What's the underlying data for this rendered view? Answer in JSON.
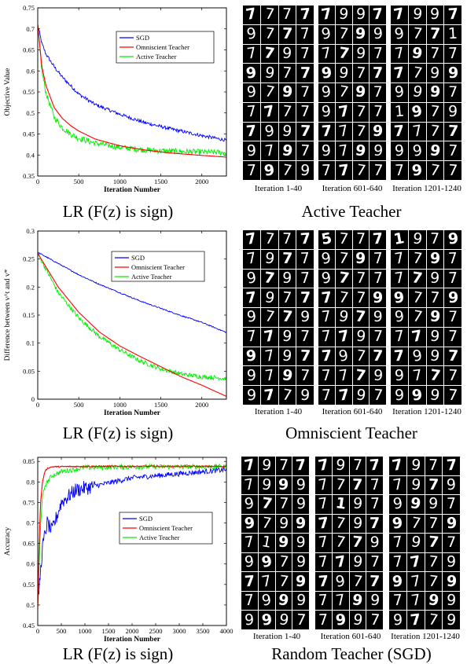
{
  "charts": [
    {
      "caption": "LR (F(z) is sign)",
      "panel_title": "Active Teacher",
      "grid_captions": [
        "Iteration 1-40",
        "Iteration 601-640",
        "Iteration 1201-1240"
      ]
    },
    {
      "caption": "LR (F(z) is sign)",
      "panel_title": "Omniscient Teacher",
      "grid_captions": [
        "Iteration 1-40",
        "Iteration 601-640",
        "Iteration 1201-1240"
      ]
    },
    {
      "caption": "LR (F(z) is sign)",
      "panel_title": "Random Teacher (SGD)",
      "grid_captions": [
        "Iteration 1-40",
        "Iteration 601-640",
        "Iteration 1201-1240"
      ]
    }
  ],
  "digit_grids": [
    [
      [
        "7",
        "7",
        "7",
        "7",
        "9",
        "7",
        "7",
        "7",
        "7",
        "7",
        "9",
        "7",
        "9",
        "9",
        "7",
        "7",
        "9",
        "7",
        "9",
        "7",
        "7",
        "7",
        "7",
        "7",
        "7",
        "9",
        "9",
        "7",
        "9",
        "7",
        "9",
        "7",
        "7",
        "9",
        "7",
        "9"
      ],
      [
        "7",
        "9",
        "9",
        "7",
        "9",
        "7",
        "9",
        "9",
        "7",
        "7",
        "9",
        "7",
        "9",
        "9",
        "7",
        "7",
        "9",
        "7",
        "9",
        "7",
        "9",
        "7",
        "7",
        "7",
        "7",
        "7",
        "7",
        "9",
        "9",
        "7",
        "9",
        "9",
        "7",
        "7",
        "7",
        "7"
      ],
      [
        "7",
        "9",
        "9",
        "7",
        "9",
        "7",
        "7",
        "1",
        "7",
        "9",
        "7",
        "7",
        "7",
        "7",
        "9",
        "9",
        "9",
        "9",
        "9",
        "7",
        "1",
        "9",
        "7",
        "9",
        "7",
        "7",
        "7",
        "7",
        "9",
        "9",
        "9",
        "7",
        "7",
        "9",
        "7",
        "7"
      ]
    ],
    [
      [
        "7",
        "7",
        "7",
        "7",
        "7",
        "9",
        "7",
        "7",
        "9",
        "7",
        "9",
        "7",
        "7",
        "9",
        "7",
        "7",
        "9",
        "7",
        "7",
        "9",
        "7",
        "7",
        "9",
        "7",
        "9",
        "7",
        "9",
        "7",
        "9",
        "7",
        "9",
        "7",
        "9",
        "7",
        "7",
        "9"
      ],
      [
        "5",
        "7",
        "7",
        "7",
        "9",
        "7",
        "9",
        "7",
        "9",
        "7",
        "7",
        "7",
        "7",
        "7",
        "7",
        "9",
        "7",
        "9",
        "7",
        "9",
        "7",
        "7",
        "9",
        "7",
        "7",
        "9",
        "7",
        "7",
        "7",
        "7",
        "7",
        "9",
        "7",
        "7",
        "9",
        "7"
      ],
      [
        "1",
        "9",
        "7",
        "9",
        "7",
        "7",
        "9",
        "7",
        "7",
        "7",
        "9",
        "7",
        "9",
        "7",
        "7",
        "9",
        "9",
        "7",
        "9",
        "7",
        "7",
        "7",
        "9",
        "7",
        "7",
        "9",
        "9",
        "7",
        "9",
        "7",
        "7",
        "7",
        "9",
        "9",
        "9",
        "7"
      ]
    ],
    [
      [
        "7",
        "9",
        "7",
        "7",
        "7",
        "9",
        "9",
        "9",
        "9",
        "7",
        "7",
        "9",
        "9",
        "7",
        "9",
        "9",
        "7",
        "1",
        "9",
        "9",
        "9",
        "9",
        "7",
        "9",
        "7",
        "7",
        "7",
        "9",
        "7",
        "9",
        "9",
        "9",
        "9",
        "9",
        "9",
        "7"
      ],
      [
        "7",
        "9",
        "7",
        "7",
        "7",
        "7",
        "7",
        "7",
        "7",
        "1",
        "9",
        "7",
        "7",
        "7",
        "9",
        "7",
        "7",
        "7",
        "7",
        "9",
        "7",
        "7",
        "9",
        "7",
        "7",
        "9",
        "7",
        "7",
        "7",
        "7",
        "9",
        "9",
        "7",
        "9",
        "9",
        "7"
      ],
      [
        "7",
        "9",
        "7",
        "7",
        "7",
        "9",
        "7",
        "9",
        "9",
        "9",
        "9",
        "7",
        "9",
        "7",
        "7",
        "9",
        "7",
        "9",
        "7",
        "7",
        "7",
        "7",
        "7",
        "9",
        "9",
        "7",
        "7",
        "9",
        "7",
        "7",
        "9",
        "9",
        "9",
        "7",
        "7",
        "9"
      ]
    ]
  ],
  "chart_data": [
    {
      "type": "line",
      "xlabel": "Iteration Number",
      "ylabel": "Objective Value",
      "xlim": [
        0,
        2300
      ],
      "ylim": [
        0.35,
        0.75
      ],
      "xticks": [
        0,
        500,
        1000,
        1500,
        2000
      ],
      "yticks": [
        0.35,
        0.4,
        0.45,
        0.5,
        0.55,
        0.6,
        0.65,
        0.7,
        0.75
      ],
      "ytick_labels": [
        "0.35",
        "0.4",
        "0.45",
        "0.5",
        "0.55",
        "0.6",
        "0.65",
        "0.7",
        "0.75"
      ],
      "legend_position": "top-right",
      "colors": {
        "SGD": "#0000ff",
        "Omniscient Teacher": "#ff0000",
        "Active Teacher": "#00ee00"
      },
      "series": [
        {
          "name": "SGD",
          "x": [
            0,
            50,
            100,
            200,
            300,
            400,
            500,
            700,
            1000,
            1300,
            1600,
            2000,
            2300
          ],
          "values": [
            0.71,
            0.665,
            0.64,
            0.61,
            0.585,
            0.565,
            0.545,
            0.52,
            0.497,
            0.477,
            0.463,
            0.446,
            0.435
          ]
        },
        {
          "name": "Omniscient Teacher",
          "x": [
            0,
            50,
            100,
            200,
            300,
            400,
            500,
            700,
            1000,
            1300,
            1600,
            2000,
            2300
          ],
          "values": [
            0.71,
            0.61,
            0.565,
            0.513,
            0.487,
            0.47,
            0.457,
            0.438,
            0.422,
            0.412,
            0.405,
            0.399,
            0.395
          ]
        },
        {
          "name": "Active Teacher",
          "x": [
            0,
            50,
            100,
            200,
            300,
            400,
            500,
            700,
            1000,
            1300,
            1600,
            2000,
            2300
          ],
          "values": [
            0.71,
            0.6,
            0.548,
            0.49,
            0.465,
            0.45,
            0.44,
            0.428,
            0.418,
            0.412,
            0.409,
            0.407,
            0.406
          ]
        }
      ]
    },
    {
      "type": "line",
      "xlabel": "Iteration Number",
      "ylabel": "Difference between v^t and v*",
      "xlim": [
        0,
        2300
      ],
      "ylim": [
        0,
        0.3
      ],
      "xticks": [
        0,
        500,
        1000,
        1500,
        2000
      ],
      "yticks": [
        0,
        0.05,
        0.1,
        0.15,
        0.2,
        0.25,
        0.3
      ],
      "ytick_labels": [
        "0",
        "0.05",
        "0.1",
        "0.15",
        "0.2",
        "0.25",
        "0.3"
      ],
      "legend_position": "top-right",
      "colors": {
        "SGD": "#0000ff",
        "Omniscient Teacher": "#ff0000",
        "Active Teacher": "#00ee00"
      },
      "series": [
        {
          "name": "SGD",
          "x": [
            0,
            250,
            500,
            750,
            1000,
            1250,
            1500,
            1750,
            2000,
            2300
          ],
          "values": [
            0.262,
            0.242,
            0.222,
            0.205,
            0.19,
            0.175,
            0.162,
            0.149,
            0.137,
            0.119
          ]
        },
        {
          "name": "Omniscient Teacher",
          "x": [
            0,
            250,
            500,
            750,
            1000,
            1250,
            1500,
            1750,
            2000,
            2300
          ],
          "values": [
            0.26,
            0.2,
            0.155,
            0.12,
            0.095,
            0.076,
            0.058,
            0.04,
            0.025,
            0.005
          ]
        },
        {
          "name": "Active Teacher",
          "x": [
            0,
            250,
            500,
            750,
            1000,
            1250,
            1500,
            1750,
            2000,
            2300
          ],
          "values": [
            0.26,
            0.19,
            0.145,
            0.112,
            0.088,
            0.068,
            0.054,
            0.045,
            0.04,
            0.037
          ]
        }
      ]
    },
    {
      "type": "line",
      "xlabel": "Iteration Number",
      "ylabel": "Accuracy",
      "xlim": [
        0,
        4000
      ],
      "ylim": [
        0.45,
        0.86
      ],
      "xticks": [
        0,
        500,
        1000,
        1500,
        2000,
        2500,
        3000,
        3500,
        4000
      ],
      "yticks": [
        0.45,
        0.5,
        0.55,
        0.6,
        0.65,
        0.7,
        0.75,
        0.8,
        0.85
      ],
      "ytick_labels": [
        "0.45",
        "0.5",
        "0.55",
        "0.6",
        "0.65",
        "0.7",
        "0.75",
        "0.8",
        "0.85"
      ],
      "legend_position": "middle-right",
      "colors": {
        "SGD": "#0000ff",
        "Omniscient Teacher": "#ff0000",
        "Active Teacher": "#00ee00"
      },
      "series": [
        {
          "name": "SGD",
          "x": [
            0,
            50,
            100,
            200,
            300,
            500,
            800,
            1200,
            1600,
            2000,
            2500,
            3000,
            3500,
            4000
          ],
          "values": [
            0.5,
            0.57,
            0.64,
            0.7,
            0.68,
            0.75,
            0.78,
            0.79,
            0.8,
            0.81,
            0.815,
            0.82,
            0.825,
            0.83
          ]
        },
        {
          "name": "Omniscient Teacher",
          "x": [
            0,
            30,
            60,
            100,
            150,
            200,
            300,
            1000,
            2000,
            3000,
            4000
          ],
          "values": [
            0.49,
            0.65,
            0.75,
            0.8,
            0.825,
            0.833,
            0.837,
            0.838,
            0.838,
            0.838,
            0.838
          ]
        },
        {
          "name": "Active Teacher",
          "x": [
            0,
            30,
            60,
            100,
            150,
            200,
            300,
            500,
            1000,
            2000,
            3000,
            4000
          ],
          "values": [
            0.49,
            0.6,
            0.7,
            0.76,
            0.79,
            0.8,
            0.815,
            0.825,
            0.835,
            0.837,
            0.837,
            0.837
          ]
        }
      ]
    }
  ]
}
